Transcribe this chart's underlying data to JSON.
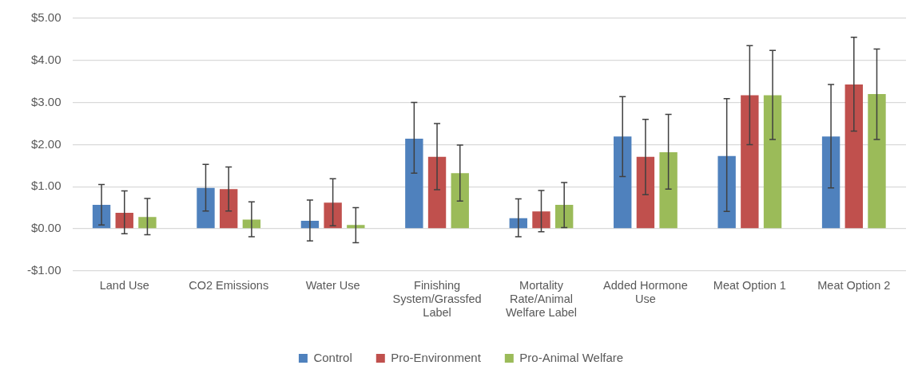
{
  "chart_data": {
    "type": "bar",
    "categories": [
      "Land Use",
      "CO2 Emissions",
      "Water Use",
      "Finishing System/Grassfed Label",
      "Mortality Rate/Animal Welfare Label",
      "Added Hormone Use",
      "Meat Option 1",
      "Meat Option 2"
    ],
    "series": [
      {
        "name": "Control",
        "color": "#4f81bd",
        "values": [
          0.57,
          0.97,
          0.19,
          2.14,
          0.25,
          2.19,
          1.73,
          2.19
        ],
        "errors": [
          [
            0.09,
            1.05
          ],
          [
            0.42,
            1.53
          ],
          [
            -0.29,
            0.68
          ],
          [
            1.32,
            3.0
          ],
          [
            -0.19,
            0.71
          ],
          [
            1.24,
            3.14
          ],
          [
            0.41,
            3.09
          ],
          [
            0.97,
            3.43
          ]
        ]
      },
      {
        "name": "Pro-Environment",
        "color": "#c0504d",
        "values": [
          0.38,
          0.94,
          0.62,
          1.71,
          0.41,
          1.71,
          3.17,
          3.43
        ],
        "errors": [
          [
            -0.12,
            0.9
          ],
          [
            0.42,
            1.47
          ],
          [
            0.07,
            1.19
          ],
          [
            0.93,
            2.5
          ],
          [
            -0.07,
            0.91
          ],
          [
            0.81,
            2.6
          ],
          [
            2.0,
            4.35
          ],
          [
            2.32,
            4.55
          ]
        ]
      },
      {
        "name": "Pro-Animal Welfare",
        "color": "#9bbb59",
        "values": [
          0.28,
          0.22,
          0.09,
          1.32,
          0.57,
          1.82,
          3.17,
          3.2
        ],
        "errors": [
          [
            -0.14,
            0.72
          ],
          [
            -0.19,
            0.64
          ],
          [
            -0.33,
            0.5
          ],
          [
            0.66,
            1.99
          ],
          [
            0.03,
            1.1
          ],
          [
            0.94,
            2.72
          ],
          [
            2.12,
            4.24
          ],
          [
            2.12,
            4.27
          ]
        ]
      }
    ],
    "ylim": [
      -1,
      5
    ],
    "yticks": [
      {
        "value": -1,
        "label": "-$1.00"
      },
      {
        "value": 0,
        "label": "$0.00"
      },
      {
        "value": 1,
        "label": "$1.00"
      },
      {
        "value": 2,
        "label": "$2.00"
      },
      {
        "value": 3,
        "label": "$3.00"
      },
      {
        "value": 4,
        "label": "$4.00"
      },
      {
        "value": 5,
        "label": "$5.00"
      }
    ],
    "grid": "y",
    "legend": "bottom"
  }
}
